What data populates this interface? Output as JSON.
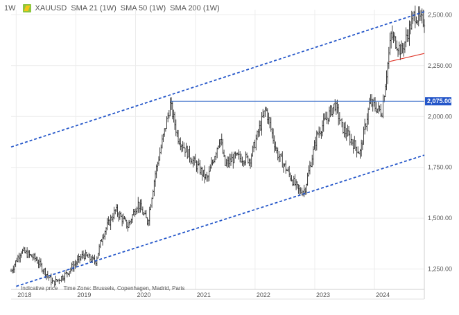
{
  "legend": {
    "timeframe": "1W",
    "symbol": "XAUUSD",
    "sma1": "SMA 21 (1W)",
    "sma2": "SMA 50 (1W)",
    "sma3": "SMA 200 (1W)"
  },
  "footer": {
    "indicative": "Indicative price",
    "timezone": "Time Zone: Brussels, Copenhagen, Madrid, Paris"
  },
  "colors": {
    "candle": "#2b2b2b",
    "channel": "#2456c9",
    "support_line": "#3a6fc8",
    "trend_red": "#e03a2e",
    "price_tag": "#2456c9",
    "grid": "#ececec",
    "logo": "#8dc63f"
  },
  "chart_data": {
    "type": "ohlc",
    "title": "XAUUSD",
    "ylim": [
      1150,
      2525
    ],
    "yticks": [
      "2,500.00",
      "2,250.00",
      "2,000.00",
      "1,750.00",
      "1,500.00",
      "1,250.00"
    ],
    "ytick_values": [
      2500,
      2250,
      2000,
      1750,
      1500,
      1250
    ],
    "xticks": [
      "2018",
      "2019",
      "2020",
      "2021",
      "2022",
      "2023",
      "2024"
    ],
    "xtick_dates": [
      "2018-01-01",
      "2019-01-01",
      "2020-01-01",
      "2021-01-01",
      "2022-01-01",
      "2023-01-01",
      "2024-01-01"
    ],
    "xlim": [
      "2017-12-01",
      "2024-11-01"
    ],
    "current_price_label": "2,075.00",
    "support_level": 2075,
    "price_path": [
      [
        "2017-12-01",
        1240
      ],
      [
        "2018-02-01",
        1340
      ],
      [
        "2018-05-01",
        1300
      ],
      [
        "2018-08-15",
        1180
      ],
      [
        "2018-11-01",
        1225
      ],
      [
        "2019-02-15",
        1320
      ],
      [
        "2019-05-01",
        1285
      ],
      [
        "2019-06-15",
        1420
      ],
      [
        "2019-09-01",
        1540
      ],
      [
        "2019-11-15",
        1460
      ],
      [
        "2020-01-15",
        1575
      ],
      [
        "2020-03-15",
        1480
      ],
      [
        "2020-05-01",
        1720
      ],
      [
        "2020-08-01",
        2060
      ],
      [
        "2020-09-15",
        1900
      ],
      [
        "2020-12-01",
        1800
      ],
      [
        "2021-03-15",
        1690
      ],
      [
        "2021-06-01",
        1900
      ],
      [
        "2021-07-01",
        1760
      ],
      [
        "2021-09-01",
        1800
      ],
      [
        "2021-12-01",
        1790
      ],
      [
        "2022-03-07",
        2040
      ],
      [
        "2022-05-15",
        1820
      ],
      [
        "2022-09-28",
        1630
      ],
      [
        "2022-11-01",
        1640
      ],
      [
        "2023-01-15",
        1910
      ],
      [
        "2023-05-04",
        2060
      ],
      [
        "2023-06-15",
        1950
      ],
      [
        "2023-10-05",
        1820
      ],
      [
        "2023-12-04",
        2070
      ],
      [
        "2024-02-15",
        2020
      ],
      [
        "2024-04-12",
        2400
      ],
      [
        "2024-06-15",
        2320
      ],
      [
        "2024-09-01",
        2500
      ],
      [
        "2024-10-15",
        2470
      ]
    ],
    "annotations": {
      "upper_channel": [
        [
          "2017-12-01",
          1850
        ],
        [
          "2024-11-01",
          2515
        ]
      ],
      "lower_channel": [
        [
          "2018-01-01",
          1165
        ],
        [
          "2024-11-01",
          1810
        ]
      ],
      "support_line": [
        [
          "2020-08-01",
          2075
        ],
        [
          "2024-11-01",
          2075
        ]
      ],
      "red_trend": [
        [
          "2024-04-01",
          2270
        ],
        [
          "2024-11-01",
          2310
        ]
      ]
    }
  }
}
